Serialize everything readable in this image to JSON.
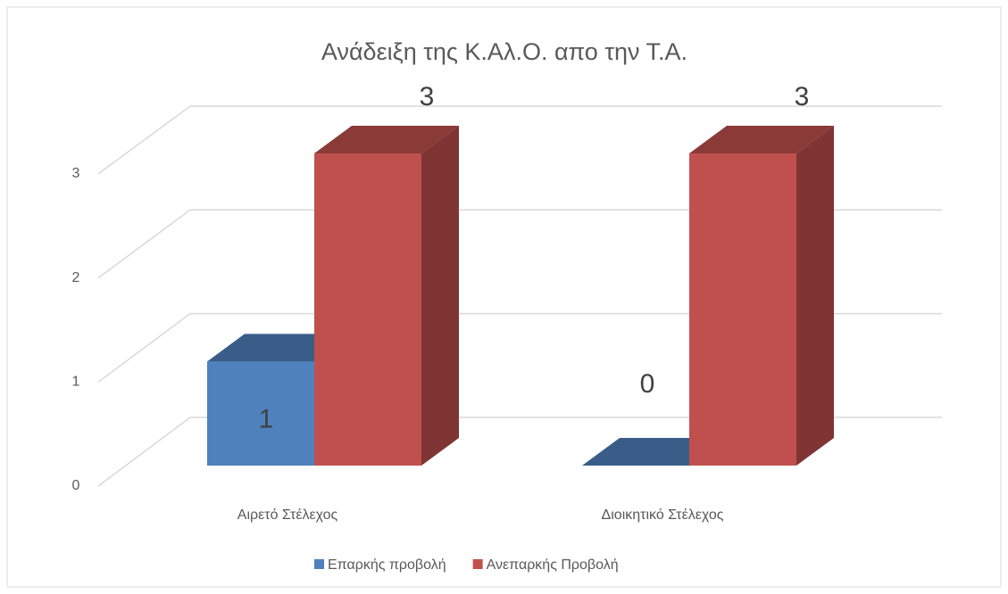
{
  "chart_data": {
    "type": "bar3d",
    "title": "Ανάδειξη της Κ.Αλ.Ο. απο την Τ.Α.",
    "categories": [
      "Αιρετό Στέλεχος",
      "Διοικητικό Στέλεχος"
    ],
    "series": [
      {
        "name": "Επαρκής προβολή",
        "color": "#4f81bd",
        "values": [
          1,
          0
        ]
      },
      {
        "name": "Ανεπαρκής Προβολή",
        "color": "#c0504d",
        "values": [
          3,
          3
        ]
      }
    ],
    "ylim": [
      0,
      3
    ],
    "yticks": [
      0,
      1,
      2,
      3
    ],
    "grid": true,
    "legend": "bottom"
  }
}
